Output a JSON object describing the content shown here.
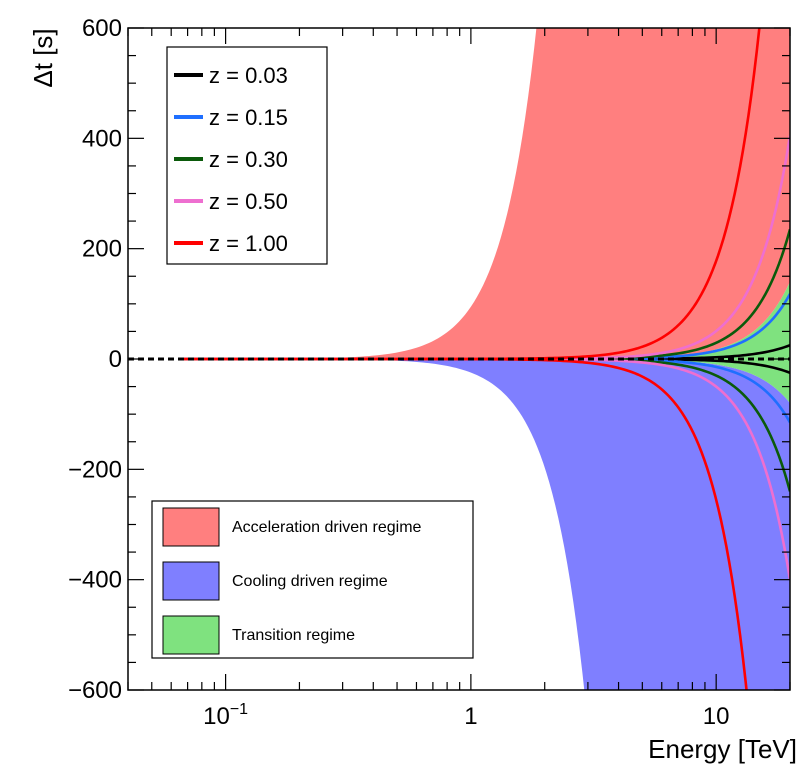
{
  "chart_data": {
    "type": "area",
    "title": "",
    "xlabel": "Energy [TeV]",
    "ylabel": "Δt [s]",
    "xscale": "log",
    "xlim": [
      0.04,
      20
    ],
    "ylim": [
      -600,
      600
    ],
    "grid": false,
    "x_ticks": [
      {
        "value": 0.1,
        "base": "10",
        "exp": "−1"
      },
      {
        "value": 1,
        "base": "1",
        "exp": ""
      },
      {
        "value": 10,
        "base": "10",
        "exp": ""
      }
    ],
    "y_ticks": [
      {
        "value": 600,
        "label": "600"
      },
      {
        "value": 400,
        "label": "400"
      },
      {
        "value": 200,
        "label": "200"
      },
      {
        "value": 0,
        "label": "0"
      },
      {
        "value": -200,
        "label": "−200"
      },
      {
        "value": -400,
        "label": "−400"
      },
      {
        "value": -600,
        "label": "−600"
      }
    ],
    "reference_energy_TeV": 0.065,
    "regimes": [
      {
        "name": "Acceleration driven regime",
        "color": "#ff7f7f",
        "lower": {
          "x": [
            0.065,
            20
          ],
          "y": [
            0,
            140
          ],
          "form": "cubic"
        },
        "upper": {
          "x": [
            0.065,
            1.85
          ],
          "y": [
            0,
            600
          ],
          "form": "cubic"
        }
      },
      {
        "name": "Cooling driven regime",
        "color": "#7f7fff",
        "upper": {
          "x": [
            0.065,
            20
          ],
          "y": [
            0,
            -80
          ],
          "form": "cubic"
        },
        "lower": {
          "x": [
            0.065,
            2.9
          ],
          "y": [
            0,
            -600
          ],
          "form": "cubic"
        }
      },
      {
        "name": "Transition regime",
        "color": "#7fe27f",
        "upper": {
          "x": [
            0.065,
            20
          ],
          "y": [
            0,
            140
          ],
          "form": "cubic"
        },
        "lower": {
          "x": [
            0.065,
            20
          ],
          "y": [
            0,
            -80
          ],
          "form": "cubic"
        }
      }
    ],
    "series": [
      {
        "name": "z = 0.03",
        "color": "#000000",
        "upper": {
          "x": [
            0.065,
            20
          ],
          "y": [
            0,
            25
          ]
        },
        "lower": {
          "x": [
            0.065,
            20
          ],
          "y": [
            0,
            -25
          ]
        }
      },
      {
        "name": "z = 0.15",
        "color": "#1f6fff",
        "upper": {
          "x": [
            0.065,
            20
          ],
          "y": [
            0,
            118
          ]
        },
        "lower": {
          "x": [
            0.065,
            20
          ],
          "y": [
            0,
            -115
          ]
        }
      },
      {
        "name": "z = 0.30",
        "color": "#0b5a0b",
        "upper": {
          "x": [
            0.065,
            20
          ],
          "y": [
            0,
            235
          ]
        },
        "lower": {
          "x": [
            0.065,
            20
          ],
          "y": [
            0,
            -240
          ]
        }
      },
      {
        "name": "z = 0.50",
        "color": "#ee6fd0",
        "upper": {
          "x": [
            0.065,
            20
          ],
          "y": [
            0,
            405
          ]
        },
        "lower": {
          "x": [
            0.065,
            20
          ],
          "y": [
            0,
            -400
          ]
        }
      },
      {
        "name": "z = 1.00",
        "color": "#ff0000",
        "upper": {
          "x": [
            0.065,
            15
          ],
          "y": [
            0,
            600
          ]
        },
        "lower": {
          "x": [
            0.065,
            13.3
          ],
          "y": [
            0,
            -600
          ]
        }
      }
    ],
    "reference_line": {
      "y": 0,
      "style": "dashed",
      "color": "#000000"
    },
    "legend_series_placement": "top-left",
    "legend_regimes_placement": "bottom-left"
  }
}
